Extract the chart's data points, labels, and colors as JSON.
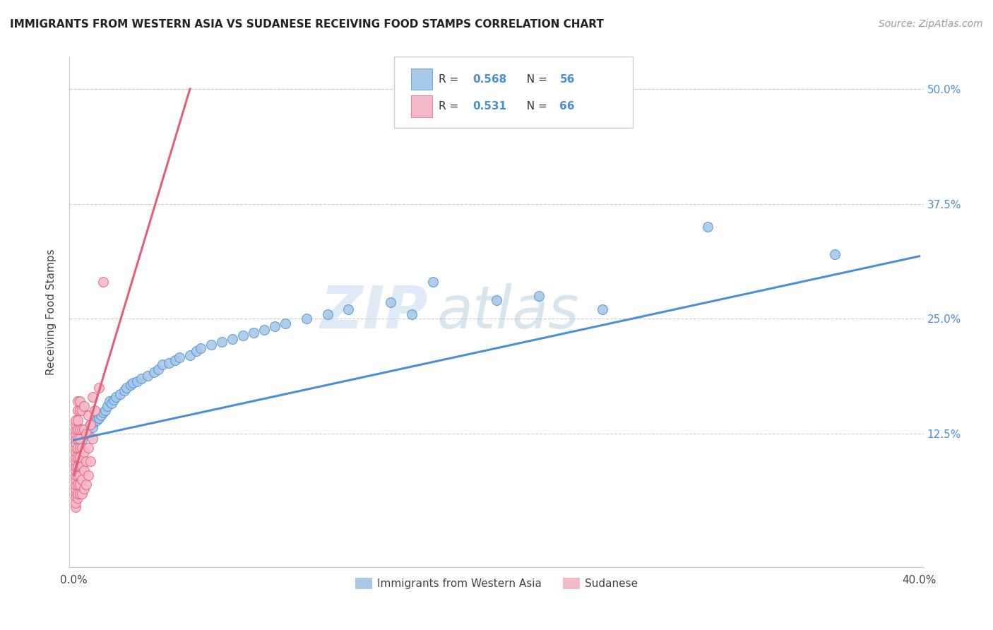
{
  "title": "IMMIGRANTS FROM WESTERN ASIA VS SUDANESE RECEIVING FOOD STAMPS CORRELATION CHART",
  "source": "Source: ZipAtlas.com",
  "ylabel_label": "Receiving Food Stamps",
  "legend_blue_label": "Immigrants from Western Asia",
  "legend_pink_label": "Sudanese",
  "blue_color": "#a8c8e8",
  "pink_color": "#f5b8c8",
  "blue_line_color": "#4a8fd4",
  "pink_line_color": "#e0607a",
  "tick_color": "#4a8fd4",
  "watermark_zip": "ZIP",
  "watermark_atlas": "atlas",
  "blue_scatter": [
    [
      0.001,
      0.115
    ],
    [
      0.002,
      0.12
    ],
    [
      0.003,
      0.122
    ],
    [
      0.004,
      0.118
    ],
    [
      0.005,
      0.125
    ],
    [
      0.006,
      0.13
    ],
    [
      0.007,
      0.128
    ],
    [
      0.008,
      0.135
    ],
    [
      0.009,
      0.132
    ],
    [
      0.01,
      0.138
    ],
    [
      0.011,
      0.14
    ],
    [
      0.012,
      0.142
    ],
    [
      0.013,
      0.145
    ],
    [
      0.014,
      0.148
    ],
    [
      0.015,
      0.15
    ],
    [
      0.016,
      0.155
    ],
    [
      0.017,
      0.16
    ],
    [
      0.018,
      0.158
    ],
    [
      0.019,
      0.162
    ],
    [
      0.02,
      0.165
    ],
    [
      0.022,
      0.168
    ],
    [
      0.024,
      0.172
    ],
    [
      0.025,
      0.175
    ],
    [
      0.027,
      0.178
    ],
    [
      0.028,
      0.18
    ],
    [
      0.03,
      0.182
    ],
    [
      0.032,
      0.185
    ],
    [
      0.035,
      0.188
    ],
    [
      0.038,
      0.192
    ],
    [
      0.04,
      0.195
    ],
    [
      0.042,
      0.2
    ],
    [
      0.045,
      0.202
    ],
    [
      0.048,
      0.205
    ],
    [
      0.05,
      0.208
    ],
    [
      0.055,
      0.21
    ],
    [
      0.058,
      0.215
    ],
    [
      0.06,
      0.218
    ],
    [
      0.065,
      0.222
    ],
    [
      0.07,
      0.225
    ],
    [
      0.075,
      0.228
    ],
    [
      0.08,
      0.232
    ],
    [
      0.085,
      0.235
    ],
    [
      0.09,
      0.238
    ],
    [
      0.095,
      0.242
    ],
    [
      0.1,
      0.245
    ],
    [
      0.11,
      0.25
    ],
    [
      0.12,
      0.255
    ],
    [
      0.13,
      0.26
    ],
    [
      0.15,
      0.268
    ],
    [
      0.16,
      0.255
    ],
    [
      0.17,
      0.29
    ],
    [
      0.2,
      0.27
    ],
    [
      0.22,
      0.275
    ],
    [
      0.25,
      0.26
    ],
    [
      0.3,
      0.35
    ],
    [
      0.36,
      0.32
    ]
  ],
  "pink_scatter": [
    [
      0.001,
      0.06
    ],
    [
      0.001,
      0.065
    ],
    [
      0.001,
      0.055
    ],
    [
      0.001,
      0.045
    ],
    [
      0.001,
      0.05
    ],
    [
      0.001,
      0.07
    ],
    [
      0.001,
      0.075
    ],
    [
      0.001,
      0.08
    ],
    [
      0.001,
      0.085
    ],
    [
      0.001,
      0.09
    ],
    [
      0.001,
      0.095
    ],
    [
      0.001,
      0.1
    ],
    [
      0.001,
      0.105
    ],
    [
      0.001,
      0.11
    ],
    [
      0.001,
      0.115
    ],
    [
      0.001,
      0.12
    ],
    [
      0.001,
      0.125
    ],
    [
      0.001,
      0.13
    ],
    [
      0.001,
      0.135
    ],
    [
      0.001,
      0.14
    ],
    [
      0.002,
      0.055
    ],
    [
      0.002,
      0.06
    ],
    [
      0.002,
      0.07
    ],
    [
      0.002,
      0.08
    ],
    [
      0.002,
      0.09
    ],
    [
      0.002,
      0.1
    ],
    [
      0.002,
      0.11
    ],
    [
      0.002,
      0.12
    ],
    [
      0.002,
      0.13
    ],
    [
      0.002,
      0.14
    ],
    [
      0.002,
      0.15
    ],
    [
      0.002,
      0.16
    ],
    [
      0.003,
      0.06
    ],
    [
      0.003,
      0.07
    ],
    [
      0.003,
      0.08
    ],
    [
      0.003,
      0.09
    ],
    [
      0.003,
      0.1
    ],
    [
      0.003,
      0.11
    ],
    [
      0.003,
      0.12
    ],
    [
      0.003,
      0.13
    ],
    [
      0.003,
      0.15
    ],
    [
      0.003,
      0.16
    ],
    [
      0.004,
      0.06
    ],
    [
      0.004,
      0.075
    ],
    [
      0.004,
      0.09
    ],
    [
      0.004,
      0.11
    ],
    [
      0.004,
      0.13
    ],
    [
      0.004,
      0.15
    ],
    [
      0.005,
      0.065
    ],
    [
      0.005,
      0.085
    ],
    [
      0.005,
      0.105
    ],
    [
      0.005,
      0.13
    ],
    [
      0.005,
      0.155
    ],
    [
      0.006,
      0.07
    ],
    [
      0.006,
      0.095
    ],
    [
      0.006,
      0.125
    ],
    [
      0.007,
      0.08
    ],
    [
      0.007,
      0.11
    ],
    [
      0.007,
      0.145
    ],
    [
      0.008,
      0.095
    ],
    [
      0.008,
      0.135
    ],
    [
      0.009,
      0.12
    ],
    [
      0.009,
      0.165
    ],
    [
      0.01,
      0.15
    ],
    [
      0.012,
      0.175
    ],
    [
      0.014,
      0.29
    ]
  ],
  "xlim": [
    0.0,
    0.4
  ],
  "ylim": [
    -0.02,
    0.52
  ],
  "blue_trend": [
    0.0,
    0.4
  ],
  "pink_trend": [
    0.0,
    0.055
  ]
}
